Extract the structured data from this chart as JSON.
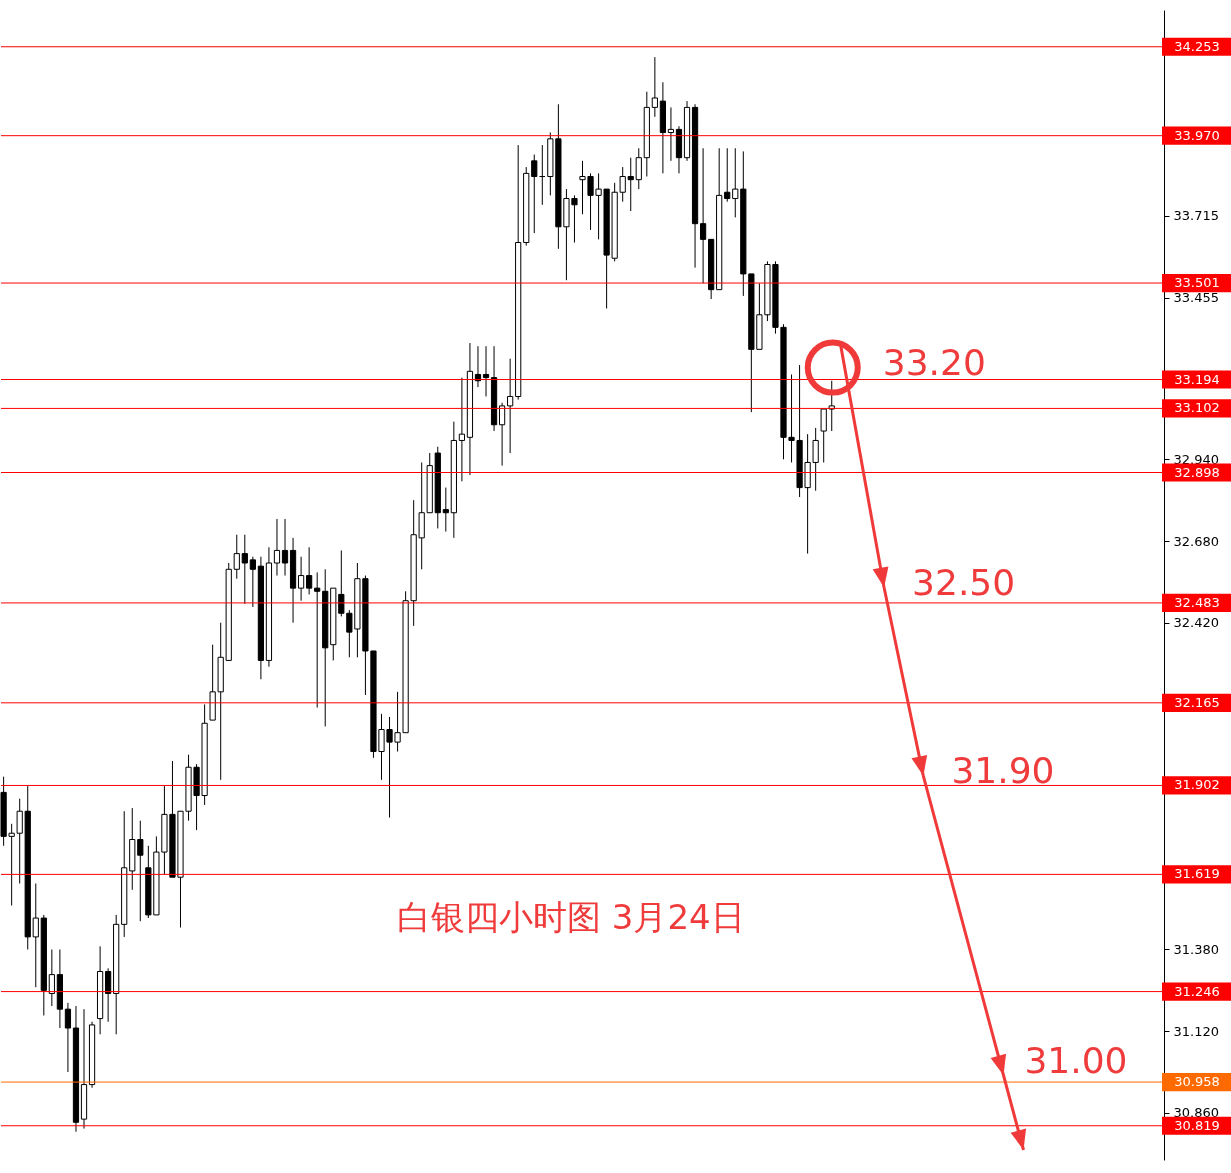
{
  "chart_data": {
    "type": "candlestick",
    "categories": [
      null,
      null,
      null,
      null,
      null,
      null,
      null,
      null,
      null,
      null,
      null,
      null,
      null,
      null,
      null,
      null,
      null,
      null,
      null,
      null,
      null,
      null,
      null,
      null,
      null,
      null,
      null,
      null,
      null,
      null,
      null,
      null,
      null,
      null,
      null,
      null,
      null,
      null,
      null,
      null,
      null,
      null,
      null,
      null,
      null,
      null,
      null,
      null,
      null,
      null,
      null,
      null,
      null,
      null,
      null,
      null,
      null,
      null,
      null,
      null,
      null,
      null,
      null,
      null,
      null,
      null,
      null,
      null,
      null,
      null,
      null,
      null,
      null,
      null,
      null,
      null,
      null,
      null,
      null,
      null,
      null,
      null,
      null,
      null,
      null,
      null,
      null,
      null,
      null,
      null,
      null,
      null,
      null,
      null,
      null,
      null,
      null,
      null,
      null,
      null,
      null,
      null,
      null,
      null,
      null,
      null,
      null,
      null,
      null,
      null,
      null,
      null,
      null,
      null,
      null,
      null,
      null,
      null,
      null,
      null,
      null,
      null,
      null,
      null,
      null,
      null,
      null,
      null,
      null,
      null,
      null,
      null,
      null,
      null,
      null,
      null,
      null,
      null,
      null,
      null,
      null,
      null,
      null,
      null,
      null
    ],
    "ohlc": [
      [
        31.88,
        31.93,
        31.71,
        31.74
      ],
      [
        31.74,
        31.78,
        31.52,
        31.75
      ],
      [
        31.75,
        31.86,
        31.59,
        31.82
      ],
      [
        31.82,
        31.9,
        31.38,
        31.42
      ],
      [
        31.42,
        31.59,
        31.26,
        31.48
      ],
      [
        31.48,
        31.49,
        31.17,
        31.25
      ],
      [
        31.24,
        31.38,
        31.2,
        31.3
      ],
      [
        31.3,
        31.38,
        31.13,
        31.19
      ],
      [
        31.19,
        31.21,
        30.99,
        31.13
      ],
      [
        31.13,
        31.2,
        30.8,
        30.83
      ],
      [
        30.84,
        31.19,
        30.81,
        30.95
      ],
      [
        30.95,
        31.15,
        30.94,
        31.14
      ],
      [
        31.16,
        31.39,
        31.11,
        31.31
      ],
      [
        31.31,
        31.32,
        31.15,
        31.24
      ],
      [
        31.24,
        31.49,
        31.11,
        31.46
      ],
      [
        31.46,
        31.82,
        31.42,
        31.64
      ],
      [
        31.63,
        31.83,
        31.57,
        31.73
      ],
      [
        31.73,
        31.79,
        31.47,
        31.68
      ],
      [
        31.64,
        31.71,
        31.48,
        31.49
      ],
      [
        31.49,
        31.74,
        31.49,
        31.69
      ],
      [
        31.69,
        31.9,
        31.62,
        31.81
      ],
      [
        31.81,
        31.98,
        31.61,
        31.61
      ],
      [
        31.61,
        31.82,
        31.45,
        31.82
      ],
      [
        31.82,
        32.0,
        31.79,
        31.96
      ],
      [
        31.96,
        31.97,
        31.76,
        31.87
      ],
      [
        31.87,
        32.16,
        31.84,
        32.1
      ],
      [
        32.11,
        32.35,
        32.11,
        32.2
      ],
      [
        32.2,
        32.42,
        31.92,
        32.31
      ],
      [
        32.3,
        32.61,
        32.3,
        32.59
      ],
      [
        32.59,
        32.7,
        32.56,
        32.64
      ],
      [
        32.64,
        32.7,
        32.48,
        32.61
      ],
      [
        32.62,
        32.63,
        32.47,
        32.59
      ],
      [
        32.6,
        32.63,
        32.24,
        32.3
      ],
      [
        32.3,
        32.66,
        32.28,
        32.61
      ],
      [
        32.61,
        32.75,
        32.57,
        32.65
      ],
      [
        32.65,
        32.75,
        32.57,
        32.61
      ],
      [
        32.65,
        32.69,
        32.42,
        32.53
      ],
      [
        32.53,
        32.63,
        32.49,
        32.57
      ],
      [
        32.57,
        32.66,
        32.51,
        32.53
      ],
      [
        32.53,
        32.58,
        32.15,
        32.52
      ],
      [
        32.52,
        32.59,
        32.09,
        32.34
      ],
      [
        32.35,
        32.53,
        32.3,
        32.53
      ],
      [
        32.51,
        32.65,
        32.44,
        32.45
      ],
      [
        32.45,
        32.46,
        32.31,
        32.39
      ],
      [
        32.4,
        32.61,
        32.31,
        32.56
      ],
      [
        32.56,
        32.57,
        32.19,
        32.33
      ],
      [
        32.33,
        32.33,
        31.99,
        32.01
      ],
      [
        32.01,
        32.13,
        31.92,
        32.08
      ],
      [
        32.08,
        32.12,
        31.8,
        32.04
      ],
      [
        32.04,
        32.2,
        32.01,
        32.07
      ],
      [
        32.07,
        32.52,
        32.07,
        32.49
      ],
      [
        32.49,
        32.81,
        32.41,
        32.7
      ],
      [
        32.69,
        32.93,
        32.59,
        32.77
      ],
      [
        32.77,
        32.96,
        32.77,
        32.92
      ],
      [
        32.96,
        32.98,
        32.72,
        32.77
      ],
      [
        32.78,
        32.85,
        32.71,
        32.77
      ],
      [
        32.77,
        33.06,
        32.69,
        33.0
      ],
      [
        33.0,
        33.2,
        32.87,
        33.02
      ],
      [
        33.01,
        33.31,
        32.89,
        33.22
      ],
      [
        33.21,
        33.3,
        33.17,
        33.19
      ],
      [
        33.21,
        33.3,
        33.14,
        33.2
      ],
      [
        33.2,
        33.3,
        33.03,
        33.05
      ],
      [
        33.05,
        33.12,
        32.92,
        33.11
      ],
      [
        33.11,
        33.26,
        32.96,
        33.14
      ],
      [
        33.14,
        33.94,
        33.13,
        33.63
      ],
      [
        33.63,
        33.87,
        33.62,
        33.85
      ],
      [
        33.89,
        33.91,
        33.66,
        33.84
      ],
      [
        33.84,
        33.94,
        33.75,
        33.84
      ],
      [
        33.84,
        33.98,
        33.78,
        33.96
      ],
      [
        33.96,
        34.07,
        33.61,
        33.68
      ],
      [
        33.68,
        33.8,
        33.51,
        33.77
      ],
      [
        33.77,
        33.78,
        33.63,
        33.75
      ],
      [
        33.83,
        33.89,
        33.72,
        33.84
      ],
      [
        33.84,
        33.85,
        33.67,
        33.78
      ],
      [
        33.78,
        33.85,
        33.64,
        33.8
      ],
      [
        33.8,
        33.8,
        33.42,
        33.59
      ],
      [
        33.58,
        33.82,
        33.57,
        33.79
      ],
      [
        33.79,
        33.87,
        33.76,
        33.84
      ],
      [
        33.84,
        33.9,
        33.73,
        33.83
      ],
      [
        33.83,
        33.93,
        33.8,
        33.9
      ],
      [
        33.9,
        34.11,
        33.84,
        34.06
      ],
      [
        34.06,
        34.22,
        34.03,
        34.09
      ],
      [
        34.08,
        34.14,
        33.85,
        33.98
      ],
      [
        33.98,
        34.06,
        33.89,
        33.99
      ],
      [
        33.99,
        34.0,
        33.85,
        33.9
      ],
      [
        33.9,
        34.08,
        33.89,
        34.06
      ],
      [
        34.06,
        34.07,
        33.55,
        33.69
      ],
      [
        33.69,
        33.93,
        33.5,
        33.64
      ],
      [
        33.64,
        33.64,
        33.45,
        33.48
      ],
      [
        33.48,
        33.93,
        33.48,
        33.78
      ],
      [
        33.79,
        33.93,
        33.76,
        33.77
      ],
      [
        33.77,
        33.93,
        33.71,
        33.8
      ],
      [
        33.8,
        33.92,
        33.46,
        33.53
      ],
      [
        33.53,
        33.53,
        33.09,
        33.29
      ],
      [
        33.29,
        33.5,
        33.29,
        33.4
      ],
      [
        33.4,
        33.57,
        33.38,
        33.56
      ],
      [
        33.56,
        33.57,
        33.34,
        33.36
      ],
      [
        33.36,
        33.37,
        32.94,
        33.01
      ],
      [
        33.01,
        33.21,
        32.93,
        33.0
      ],
      [
        33.0,
        33.24,
        32.82,
        32.85
      ],
      [
        32.85,
        33.02,
        32.64,
        32.93
      ],
      [
        32.93,
        33.04,
        32.84,
        33.0
      ],
      [
        33.03,
        33.1,
        32.93,
        33.1
      ],
      [
        33.1,
        33.19,
        33.03,
        33.11
      ],
      null,
      null,
      null,
      null,
      null,
      null,
      null,
      null,
      null,
      null,
      null,
      null,
      null,
      null,
      null,
      null,
      null,
      null,
      null,
      null,
      null,
      null,
      null,
      null,
      null,
      null,
      null,
      null,
      null,
      null,
      null,
      null,
      null,
      null,
      null,
      null,
      null,
      null,
      null,
      null,
      null
    ],
    "ylim": [
      30.71,
      34.37
    ],
    "yticks": [
      {
        "value": 30.86,
        "label": "30.860"
      },
      {
        "value": 31.12,
        "label": "31.120"
      },
      {
        "value": 31.38,
        "label": "31.380"
      },
      {
        "value": 32.42,
        "label": "32.420"
      },
      {
        "value": 32.68,
        "label": "32.680"
      },
      {
        "value": 32.94,
        "label": "32.940"
      },
      {
        "value": 33.455,
        "label": "33.455"
      },
      {
        "value": 33.715,
        "label": "33.715"
      }
    ],
    "tick_labels": "y",
    "ref_lines": [
      {
        "axis": "y",
        "value": 34.253,
        "label": "34.253",
        "color": "#ff0000"
      },
      {
        "axis": "y",
        "value": 33.97,
        "label": "33.970",
        "color": "#ff0000"
      },
      {
        "axis": "y",
        "value": 33.501,
        "label": "33.501",
        "color": "#ff0000"
      },
      {
        "axis": "y",
        "value": 33.194,
        "label": "33.194",
        "color": "#ff0000"
      },
      {
        "axis": "y",
        "value": 33.102,
        "label": "33.102",
        "color": "#ff0000"
      },
      {
        "axis": "y",
        "value": 32.898,
        "label": "32.898",
        "color": "#ff0000"
      },
      {
        "axis": "y",
        "value": 32.483,
        "label": "32.483",
        "color": "#ff0000"
      },
      {
        "axis": "y",
        "value": 32.165,
        "label": "32.165",
        "color": "#ff0000"
      },
      {
        "axis": "y",
        "value": 31.902,
        "label": "31.902",
        "color": "#ff0000"
      },
      {
        "axis": "y",
        "value": 31.619,
        "label": "31.619",
        "color": "#ff0000"
      },
      {
        "axis": "y",
        "value": 31.246,
        "label": "31.246",
        "color": "#ff0000"
      },
      {
        "axis": "y",
        "value": 30.958,
        "label": "30.958",
        "color": "#ff6a00"
      },
      {
        "axis": "y",
        "value": 30.819,
        "label": "30.819",
        "color": "#ff0000"
      }
    ],
    "annotations": [
      {
        "text": "33.20",
        "y": 33.2
      },
      {
        "text": "32.50",
        "y": 32.5
      },
      {
        "text": "31.90",
        "y": 31.9
      },
      "31.00",
      "白银四小时图  3月24日"
    ]
  }
}
